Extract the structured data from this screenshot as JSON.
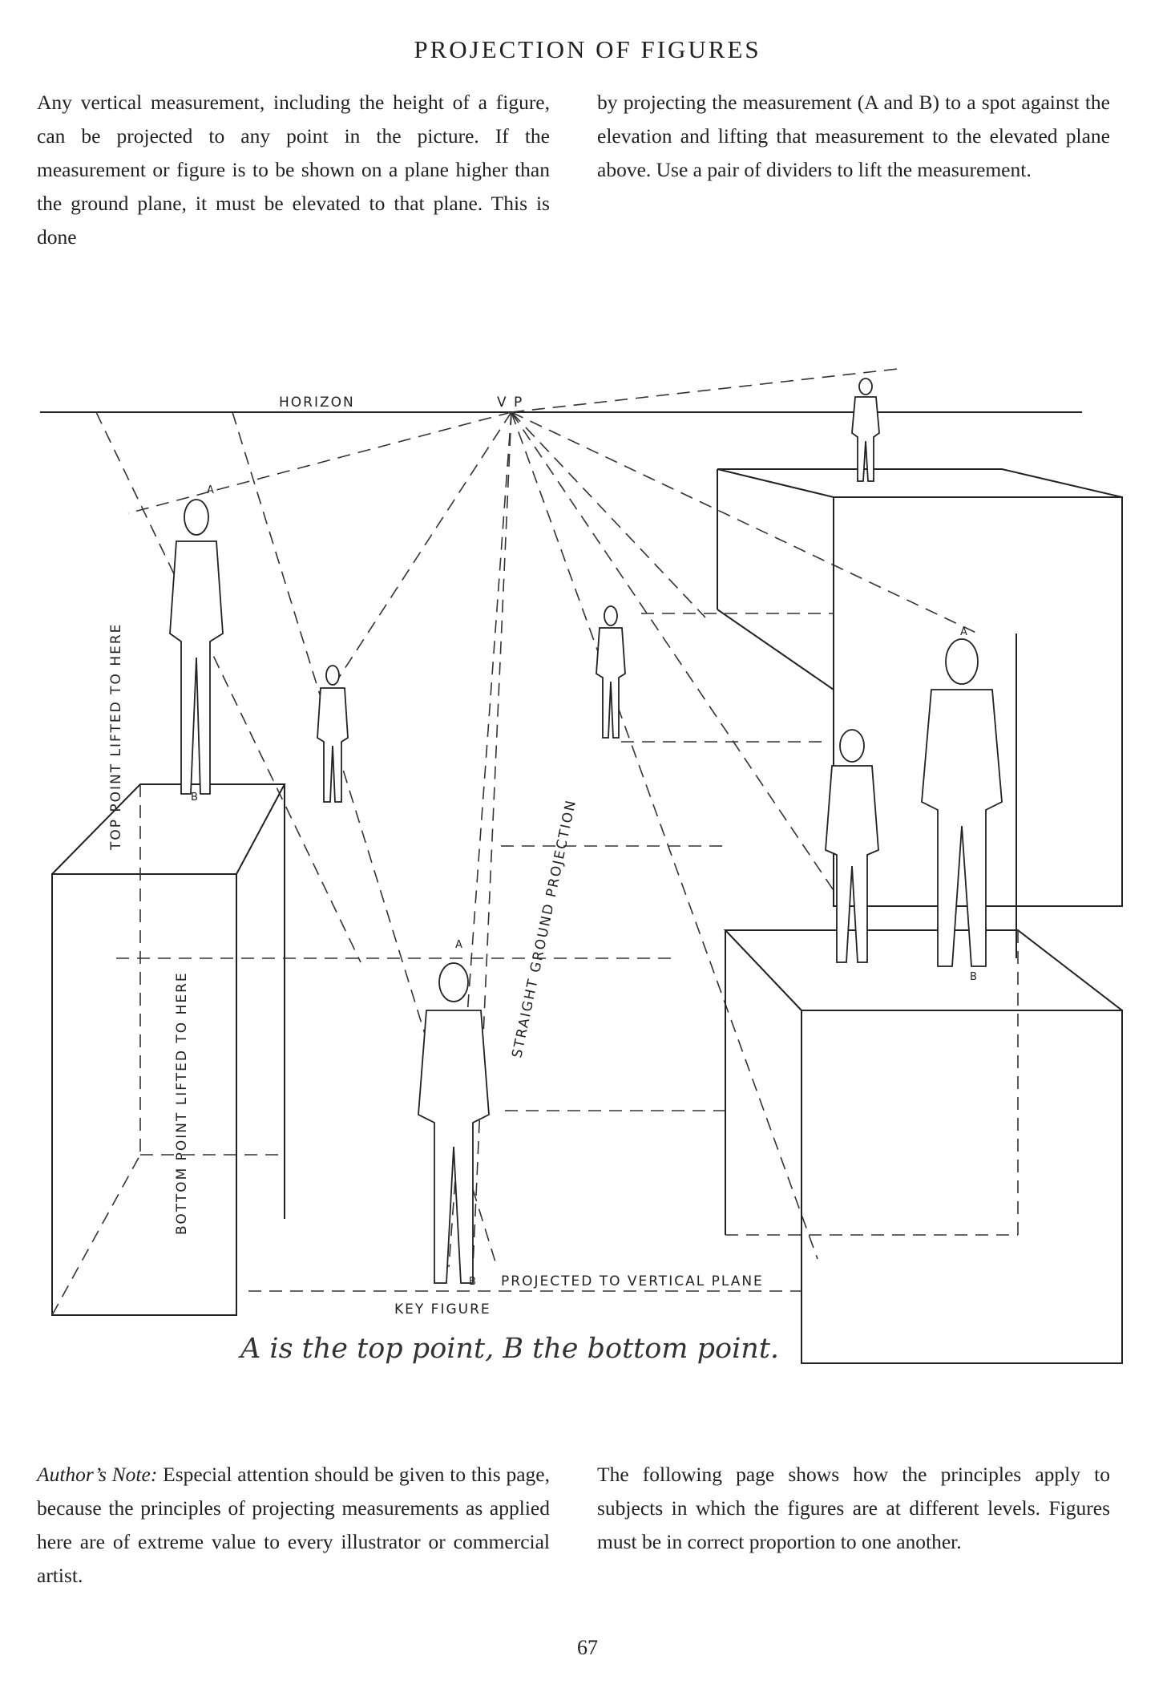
{
  "page": {
    "title": "PROJECTION OF FIGURES",
    "intro_left": "Any vertical measurement, including the height of a figure, can be projected to any point in the picture. If the measurement or figure is to be shown on a plane higher than the ground plane, it must be elevated to that plane. This is done",
    "intro_right": "by projecting the measurement (A and B) to a spot against the elevation and lifting that measurement to the elevated plane above. Use a pair of dividers to lift the measurement.",
    "caption": "A is the top point, B the bottom point.",
    "note_label": "Author’s Note:",
    "note_left": " Especial attention should be given to this page, because the principles of projecting measurements as applied here are of extreme value to every illustrator or commercial artist.",
    "note_right": "The following page shows how the principles apply to subjects in which the figures are at different levels. Figures must be in correct proportion to one another.",
    "page_number": "67"
  },
  "diagram": {
    "horizon": "HORIZON",
    "vp": "V P",
    "top_lifted": "TOP POINT LIFTED TO HERE",
    "bottom_lifted": "BOTTOM POINT LIFTED TO HERE",
    "straight_ground": "STRAIGHT GROUND PROJECTION",
    "projected_vertical": "PROJECTED TO VERTICAL PLANE",
    "key_figure": "KEY FIGURE",
    "point_a": "A",
    "point_b": "B"
  }
}
